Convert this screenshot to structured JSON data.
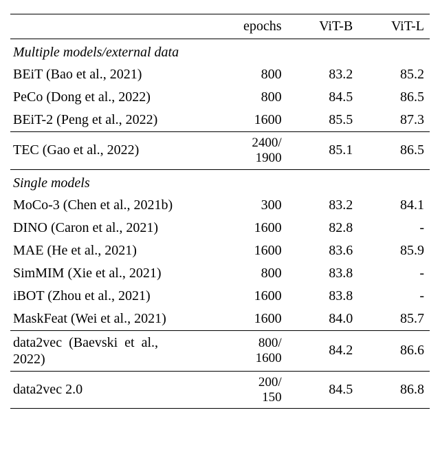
{
  "headers": {
    "epochs": "epochs",
    "vitb": "ViT-B",
    "vitl": "ViT-L"
  },
  "sections": {
    "multiple": "Multiple models/external data",
    "single": "Single models"
  },
  "multiple_rows": [
    {
      "name": "BEiT (Bao et al., 2021)",
      "epochs": "800",
      "vitb": "83.2",
      "vitl": "85.2"
    },
    {
      "name": "PeCo (Dong et al., 2022)",
      "epochs": "800",
      "vitb": "84.5",
      "vitl": "86.5"
    },
    {
      "name": "BEiT-2 (Peng et al., 2022)",
      "epochs": "1600",
      "vitb": "85.5",
      "vitl": "87.3"
    }
  ],
  "tec_row": {
    "name": "TEC (Gao et al., 2022)",
    "epochs_top": "2400/",
    "epochs_bot": "1900",
    "vitb": "85.1",
    "vitl": "86.5"
  },
  "single_rows": [
    {
      "name": "MoCo-3 (Chen et al., 2021b)",
      "epochs": "300",
      "vitb": "83.2",
      "vitl": "84.1"
    },
    {
      "name": "DINO (Caron et al., 2021)",
      "epochs": "1600",
      "vitb": "82.8",
      "vitl": "-"
    },
    {
      "name": "MAE (He et al., 2021)",
      "epochs": "1600",
      "vitb": "83.6",
      "vitl": "85.9"
    },
    {
      "name": "SimMIM (Xie et al., 2021)",
      "epochs": "800",
      "vitb": "83.8",
      "vitl": "-"
    },
    {
      "name": "iBOT (Zhou et al., 2021)",
      "epochs": "1600",
      "vitb": "83.8",
      "vitl": "-"
    },
    {
      "name": "MaskFeat (Wei et al., 2021)",
      "epochs": "1600",
      "vitb": "84.0",
      "vitl": "85.7"
    }
  ],
  "d2v_row": {
    "name_top": "data2vec  (Baevski  et  al.,",
    "name_bot": "2022)",
    "epochs_top": "800/",
    "epochs_bot": "1600",
    "vitb": "84.2",
    "vitl": "86.6"
  },
  "d2v2_row": {
    "name": "data2vec 2.0",
    "epochs_top": "200/",
    "epochs_bot": "150",
    "vitb": "84.5",
    "vitl": "86.8"
  }
}
